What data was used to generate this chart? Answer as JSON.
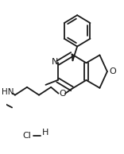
{
  "bg_color": "#ffffff",
  "line_color": "#1a1a1a",
  "lw": 1.3,
  "figsize": [
    1.56,
    1.94
  ],
  "dpi": 100,
  "xlim": [
    0,
    156
  ],
  "ylim": [
    0,
    194
  ]
}
